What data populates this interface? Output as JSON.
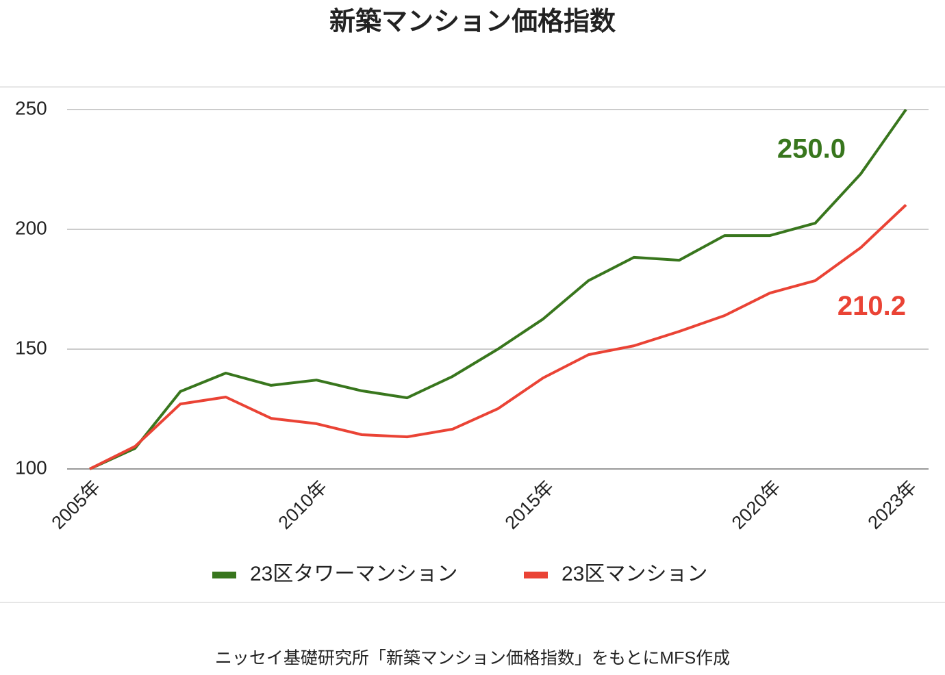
{
  "chart_data": {
    "type": "line",
    "title": "新築マンション価格指数",
    "source": "ニッセイ基礎研究所「新築マンション価格指数」をもとにMFS作成",
    "categories": [
      "2005年",
      null,
      null,
      null,
      null,
      "2010年",
      null,
      null,
      null,
      null,
      "2015年",
      null,
      null,
      null,
      null,
      "2020年",
      null,
      null,
      "2023年"
    ],
    "series": [
      {
        "name": "23区タワーマンション",
        "color": "#38761d",
        "values": [
          100,
          108.6,
          132.3,
          140,
          134.9,
          137.1,
          132.6,
          129.7,
          138.6,
          150,
          162.6,
          178.6,
          188.3,
          187.1,
          197.4,
          197.4,
          202.6,
          223.1,
          250
        ],
        "value_labels": [
          null,
          null,
          null,
          null,
          null,
          null,
          null,
          null,
          null,
          null,
          null,
          null,
          null,
          null,
          null,
          null,
          null,
          null,
          "250.0"
        ]
      },
      {
        "name": "23区マンション",
        "color": "#ea4335",
        "values": [
          100,
          109.4,
          127.1,
          130,
          121.1,
          118.9,
          114.3,
          113.4,
          116.6,
          125.1,
          138,
          147.7,
          151.4,
          157.4,
          164,
          173.4,
          178.6,
          192.3,
          210.2
        ],
        "value_labels": [
          null,
          null,
          null,
          null,
          null,
          null,
          null,
          null,
          null,
          null,
          null,
          null,
          null,
          null,
          null,
          null,
          null,
          null,
          "210.2"
        ]
      }
    ],
    "ylim": [
      100,
      250
    ],
    "yticks": [
      100,
      150,
      200,
      250
    ],
    "grid": true,
    "legend": "bottom"
  }
}
